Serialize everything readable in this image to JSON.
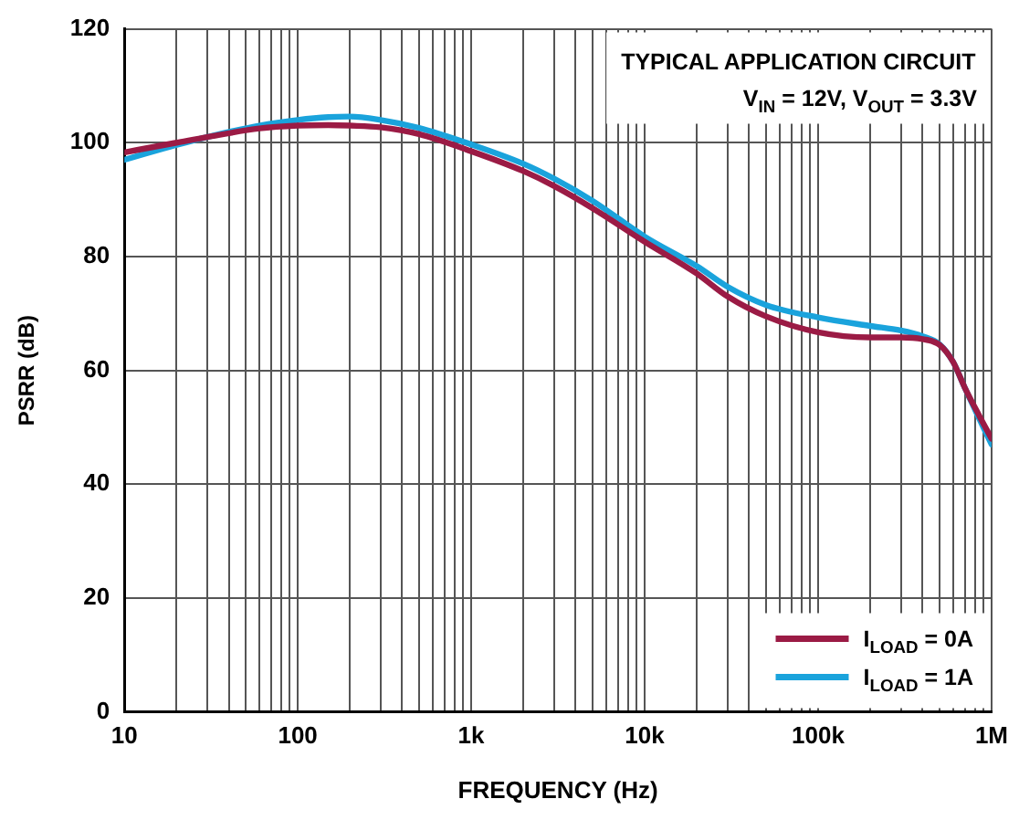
{
  "chart_data": {
    "type": "line",
    "xlabel": "FREQUENCY (Hz)",
    "ylabel": "PSRR (dB)",
    "log": "x",
    "grid": true,
    "legend": "bottom right",
    "marker": "none",
    "line_style": "solid",
    "annotations": [
      "TYPICAL APPLICATION CIRCUIT",
      "V$_{IN}$ = 12V, V$_{OUT}$ = 3.3V"
    ],
    "xlim": [
      10,
      1000000
    ],
    "ylim": [
      0,
      120
    ],
    "yticks": [
      0,
      20,
      40,
      60,
      80,
      100,
      120
    ],
    "xticks": [
      {
        "value": 10,
        "label": "10"
      },
      {
        "value": 20,
        "label": null
      },
      {
        "value": 30,
        "label": null
      },
      {
        "value": 40,
        "label": null
      },
      {
        "value": 50,
        "label": null
      },
      {
        "value": 60,
        "label": null
      },
      {
        "value": 70,
        "label": null
      },
      {
        "value": 80,
        "label": null
      },
      {
        "value": 90,
        "label": null
      },
      {
        "value": 100,
        "label": "100"
      },
      {
        "value": 200,
        "label": null
      },
      {
        "value": 300,
        "label": null
      },
      {
        "value": 400,
        "label": null
      },
      {
        "value": 500,
        "label": null
      },
      {
        "value": 600,
        "label": null
      },
      {
        "value": 700,
        "label": null
      },
      {
        "value": 800,
        "label": null
      },
      {
        "value": 900,
        "label": null
      },
      {
        "value": 1000,
        "label": "1k"
      },
      {
        "value": 2000,
        "label": null
      },
      {
        "value": 3000,
        "label": null
      },
      {
        "value": 4000,
        "label": null
      },
      {
        "value": 5000,
        "label": null
      },
      {
        "value": 6000,
        "label": null
      },
      {
        "value": 7000,
        "label": null
      },
      {
        "value": 8000,
        "label": null
      },
      {
        "value": 9000,
        "label": null
      },
      {
        "value": 10000,
        "label": "10k"
      },
      {
        "value": 20000,
        "label": null
      },
      {
        "value": 30000,
        "label": null
      },
      {
        "value": 40000,
        "label": null
      },
      {
        "value": 50000,
        "label": null
      },
      {
        "value": 60000,
        "label": null
      },
      {
        "value": 70000,
        "label": null
      },
      {
        "value": 80000,
        "label": null
      },
      {
        "value": 90000,
        "label": null
      },
      {
        "value": 100000,
        "label": "100k"
      },
      {
        "value": 200000,
        "label": null
      },
      {
        "value": 300000,
        "label": null
      },
      {
        "value": 400000,
        "label": null
      },
      {
        "value": 500000,
        "label": null
      },
      {
        "value": 600000,
        "label": null
      },
      {
        "value": 700000,
        "label": null
      },
      {
        "value": 800000,
        "label": null
      },
      {
        "value": 900000,
        "label": null
      },
      {
        "value": 1000000,
        "label": "1M"
      }
    ],
    "x": [
      10,
      20,
      30,
      60,
      100,
      150,
      200,
      300,
      500,
      1000,
      2000,
      3000,
      5000,
      10000,
      20000,
      30000,
      50000,
      100000,
      200000,
      300000,
      400000,
      500000,
      600000,
      700000,
      850000,
      1000000
    ],
    "series": [
      {
        "name": "I$_{LOAD}$ = 0A",
        "color": "#9b1b45",
        "values": [
          98.3,
          100,
          101,
          102.5,
          103,
          103.1,
          103,
          102.7,
          101.5,
          98.5,
          95,
          92.4,
          88.5,
          82.6,
          77,
          73,
          69.5,
          66.7,
          65.8,
          65.8,
          65.5,
          64.5,
          61.5,
          57,
          52,
          48
        ]
      },
      {
        "name": "I$_{LOAD}$ = 1A",
        "color": "#1aa3dc",
        "values": [
          97,
          99.6,
          101,
          103,
          104,
          104.5,
          104.6,
          104,
          102.6,
          99.7,
          96.3,
          93.7,
          89.8,
          83.5,
          78.3,
          74.7,
          71.5,
          69.3,
          67.8,
          67,
          66,
          64.6,
          61.5,
          57,
          51.5,
          47
        ]
      }
    ]
  }
}
